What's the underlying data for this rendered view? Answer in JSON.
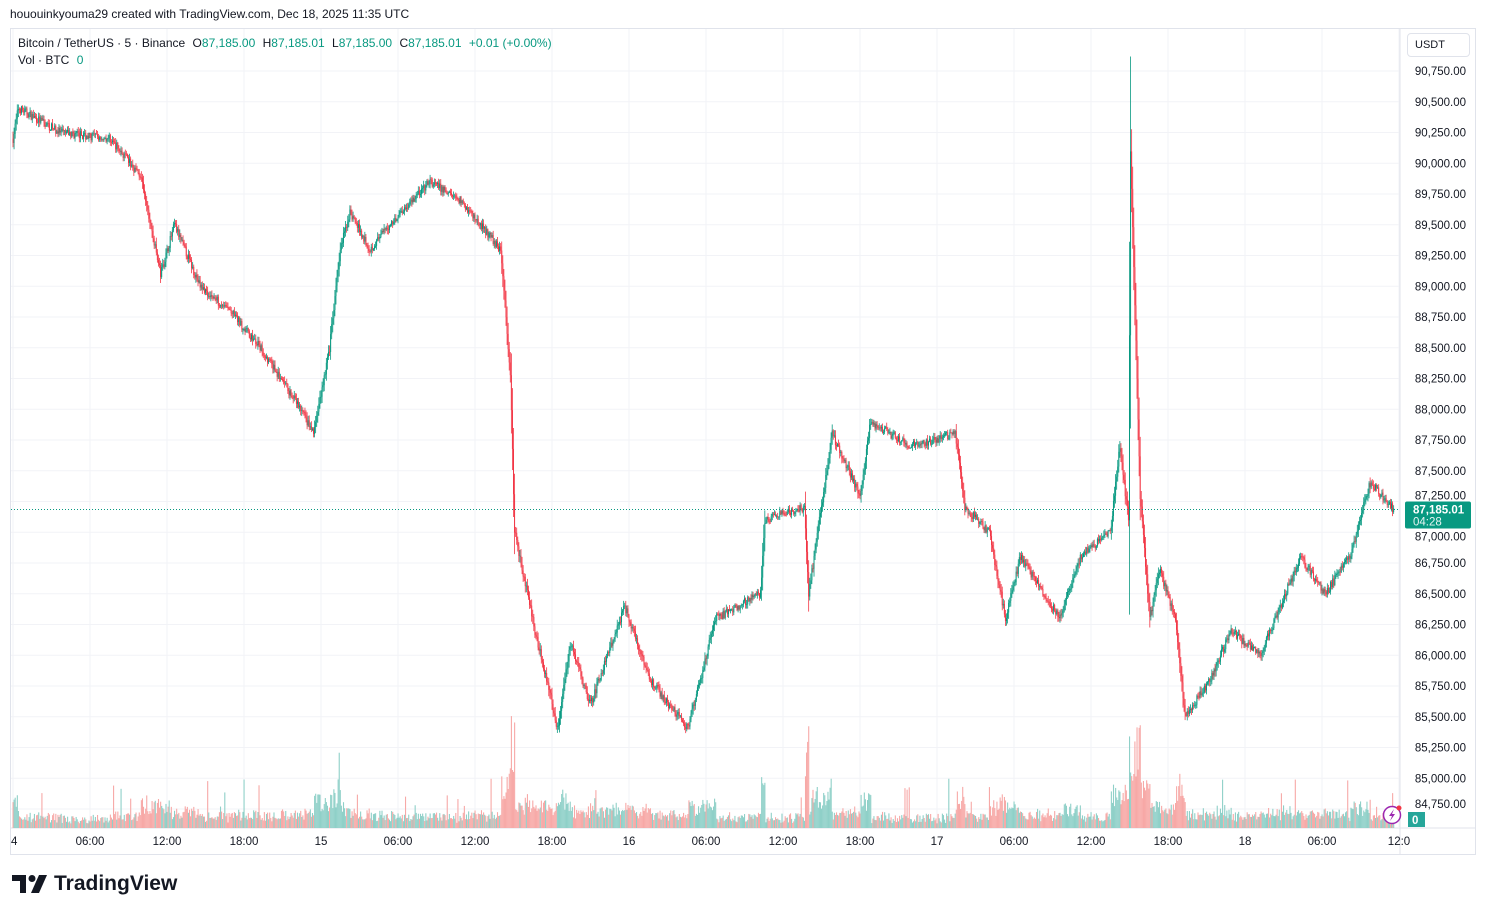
{
  "credit": "hououinkyouma29 created with TradingView.com, Dec 18, 2025 11:35 UTC",
  "legend": {
    "symbol": "Bitcoin / TetherUS · 5 · Binance",
    "open_label": "O",
    "open": "87,185.00",
    "high_label": "H",
    "high": "87,185.01",
    "low_label": "L",
    "low": "87,185.00",
    "close_label": "C",
    "close": "87,185.01",
    "change": "+0.01 (+0.00%)",
    "vol_label": "Vol · BTC",
    "vol": "0"
  },
  "currency_button": "USDT",
  "current_price": {
    "price": "87,185.01",
    "countdown": "04:28"
  },
  "volume_badge": "0",
  "alert_icon": "lightning-bolt-icon",
  "brand": "TradingView",
  "colors": {
    "up": "#089981",
    "down": "#f23645",
    "up_volume": "#8fd0c8",
    "down_volume": "#f7a9a7",
    "grid": "#f2f3f7"
  },
  "chart_data": {
    "type": "candlestick",
    "interval": "5m",
    "y_ticks": [
      "90,750.00",
      "90,500.00",
      "90,250.00",
      "90,000.00",
      "89,750.00",
      "89,500.00",
      "89,250.00",
      "89,000.00",
      "88,750.00",
      "88,500.00",
      "88,250.00",
      "88,000.00",
      "87,750.00",
      "87,500.00",
      "87,250.00",
      "87,000.00",
      "86,750.00",
      "86,500.00",
      "86,250.00",
      "86,000.00",
      "85,750.00",
      "85,500.00",
      "85,250.00",
      "85,000.00",
      "84,750.00"
    ],
    "ylim": [
      84600,
      91050
    ],
    "x_ticks": [
      {
        "label": "4",
        "time": "2025-12-14T00:00"
      },
      {
        "label": "06:00",
        "time": "2025-12-14T06:00"
      },
      {
        "label": "12:00",
        "time": "2025-12-14T12:00"
      },
      {
        "label": "18:00",
        "time": "2025-12-14T18:00"
      },
      {
        "label": "15",
        "time": "2025-12-15T00:00"
      },
      {
        "label": "06:00",
        "time": "2025-12-15T06:00"
      },
      {
        "label": "12:00",
        "time": "2025-12-15T12:00"
      },
      {
        "label": "18:00",
        "time": "2025-12-15T18:00"
      },
      {
        "label": "16",
        "time": "2025-12-16T00:00"
      },
      {
        "label": "06:00",
        "time": "2025-12-16T06:00"
      },
      {
        "label": "12:00",
        "time": "2025-12-16T12:00"
      },
      {
        "label": "18:00",
        "time": "2025-12-16T18:00"
      },
      {
        "label": "17",
        "time": "2025-12-17T00:00"
      },
      {
        "label": "06:00",
        "time": "2025-12-17T06:00"
      },
      {
        "label": "12:00",
        "time": "2025-12-17T12:00"
      },
      {
        "label": "18:00",
        "time": "2025-12-17T18:00"
      },
      {
        "label": "18",
        "time": "2025-12-18T00:00"
      },
      {
        "label": "06:00",
        "time": "2025-12-18T06:00"
      },
      {
        "label": "12:0",
        "time": "2025-12-18T12:00"
      }
    ],
    "price_path": [
      [
        "2025-12-14T00:00",
        90200
      ],
      [
        "2025-12-14T00:25",
        90450
      ],
      [
        "2025-12-14T03:40",
        90250
      ],
      [
        "2025-12-14T07:35",
        90200
      ],
      [
        "2025-12-14T09:55",
        89900
      ],
      [
        "2025-12-14T11:30",
        89100
      ],
      [
        "2025-12-14T12:35",
        89500
      ],
      [
        "2025-12-14T14:35",
        89000
      ],
      [
        "2025-12-14T16:55",
        88800
      ],
      [
        "2025-12-14T19:15",
        88500
      ],
      [
        "2025-12-14T22:25",
        88000
      ],
      [
        "2025-12-14T23:25",
        87800
      ],
      [
        "2025-12-15T00:40",
        88500
      ],
      [
        "2025-12-15T01:30",
        89300
      ],
      [
        "2025-12-15T02:15",
        89600
      ],
      [
        "2025-12-15T03:50",
        89300
      ],
      [
        "2025-12-15T06:10",
        89600
      ],
      [
        "2025-12-15T08:30",
        89850
      ],
      [
        "2025-12-15T10:50",
        89700
      ],
      [
        "2025-12-15T14:00",
        89300
      ],
      [
        "2025-12-15T14:45",
        88300
      ],
      [
        "2025-12-15T15:05",
        87000
      ],
      [
        "2025-12-15T15:30",
        86800
      ],
      [
        "2025-12-15T16:40",
        86200
      ],
      [
        "2025-12-15T17:50",
        85700
      ],
      [
        "2025-12-15T18:25",
        85400
      ],
      [
        "2025-12-15T19:25",
        86100
      ],
      [
        "2025-12-15T21:00",
        85600
      ],
      [
        "2025-12-15T23:40",
        86400
      ],
      [
        "2025-12-16T01:40",
        85800
      ],
      [
        "2025-12-16T04:35",
        85400
      ],
      [
        "2025-12-16T06:45",
        86300
      ],
      [
        "2025-12-16T10:15",
        86500
      ],
      [
        "2025-12-16T10:35",
        87100
      ],
      [
        "2025-12-16T13:40",
        87200
      ],
      [
        "2025-12-16T14:00",
        86500
      ],
      [
        "2025-12-16T15:50",
        87800
      ],
      [
        "2025-12-16T18:00",
        87300
      ],
      [
        "2025-12-16T18:50",
        87900
      ],
      [
        "2025-12-16T21:55",
        87700
      ],
      [
        "2025-12-17T01:25",
        87800
      ],
      [
        "2025-12-17T02:10",
        87200
      ],
      [
        "2025-12-17T04:05",
        87000
      ],
      [
        "2025-12-17T05:20",
        86300
      ],
      [
        "2025-12-17T06:30",
        86800
      ],
      [
        "2025-12-17T09:35",
        86300
      ],
      [
        "2025-12-17T11:10",
        86800
      ],
      [
        "2025-12-17T13:30",
        87000
      ],
      [
        "2025-12-17T14:15",
        87700
      ],
      [
        "2025-12-17T14:55",
        87100
      ],
      [
        "2025-12-17T15:05",
        90100
      ],
      [
        "2025-12-17T15:50",
        87300
      ],
      [
        "2025-12-17T16:35",
        86300
      ],
      [
        "2025-12-17T17:20",
        86700
      ],
      [
        "2025-12-17T18:35",
        86300
      ],
      [
        "2025-12-17T19:20",
        85500
      ],
      [
        "2025-12-17T21:15",
        85800
      ],
      [
        "2025-12-17T22:55",
        86200
      ],
      [
        "2025-12-18T01:10",
        86000
      ],
      [
        "2025-12-18T04:20",
        86800
      ],
      [
        "2025-12-18T06:15",
        86500
      ],
      [
        "2025-12-18T08:10",
        86800
      ],
      [
        "2025-12-18T09:45",
        87400
      ],
      [
        "2025-12-18T11:35",
        87185.01
      ]
    ],
    "last_price": 87185.01
  }
}
